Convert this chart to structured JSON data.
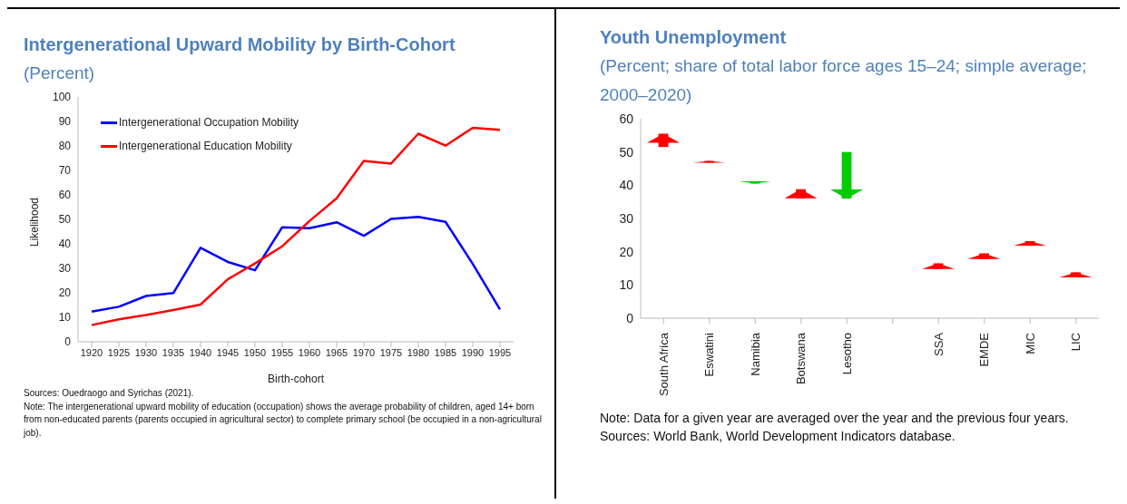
{
  "chart_data": [
    {
      "type": "line",
      "title": "Intergenerational Upward Mobility by Birth-Cohort",
      "subtitle": "(Percent)",
      "xlabel": "Birth-cohort",
      "ylabel": "Likelihood",
      "x": [
        1920,
        1925,
        1930,
        1935,
        1940,
        1945,
        1950,
        1955,
        1960,
        1965,
        1970,
        1975,
        1980,
        1985,
        1990,
        1995
      ],
      "xlim": [
        1917.5,
        1997.5
      ],
      "xticks": [
        1920,
        1925,
        1930,
        1935,
        1940,
        1945,
        1950,
        1955,
        1960,
        1965,
        1970,
        1975,
        1980,
        1985,
        1990,
        1995
      ],
      "ylim": [
        0,
        100
      ],
      "yticks": [
        0,
        10,
        20,
        30,
        40,
        50,
        60,
        70,
        80,
        90,
        100
      ],
      "legend": "top left",
      "series": [
        {
          "name": "Intergenerational Occupation Mobility",
          "color": "#0000ff",
          "values": [
            12.3,
            14.3,
            18.7,
            19.9,
            38.4,
            32.6,
            29.2,
            46.8,
            46.4,
            48.8,
            43.3,
            50.2,
            51,
            49,
            31.8,
            13.2
          ]
        },
        {
          "name": "Intergenerational Education Mobility",
          "color": "#ff0000",
          "values": [
            6.8,
            9.2,
            10.9,
            13,
            15.2,
            25.5,
            32,
            39,
            49.3,
            58.6,
            73.9,
            72.8,
            85,
            80.1,
            87.4,
            86.6
          ]
        }
      ],
      "annotations": [
        "Sources: Ouedraogo and Syrichas (2021).",
        "Note: The intergenerational upward mobility of education (occupation) shows the average probability of children, aged 14+ born from non-educated parents (parents occupied in agricultural sector) to complete primary school (be occupied in a non-agricultural job)."
      ]
    },
    {
      "type": "bar",
      "title": "Youth Unemployment",
      "subtitle": "(Percent; share of total labor force ages 15–24; simple average; 2000–2020)",
      "categories": [
        "South Africa",
        "Eswatini",
        "Namibia",
        "Botswana",
        "Lesotho",
        null,
        "SSA",
        "EMDE",
        "MIC",
        "LIC"
      ],
      "base": [
        51.5,
        46.8,
        41.2,
        36,
        50,
        null,
        14.8,
        17.8,
        21.8,
        12.3
      ],
      "values": [
        4,
        0.5,
        -0.7,
        2.8,
        -14,
        null,
        1.7,
        1.7,
        1.4,
        1.5
      ],
      "colors": [
        "#ff0000",
        "#ff0000",
        "#00cc00",
        "#ff0000",
        "#00cc00",
        null,
        "#ff0000",
        "#ff0000",
        "#ff0000",
        "#ff0000"
      ],
      "ylim": [
        0,
        60
      ],
      "yticks": [
        0,
        10,
        20,
        30,
        40,
        50,
        60
      ],
      "annotations": [
        "Note: Data for a given year are averaged over the year and the previous four years.",
        "Sources: World Bank, World Development Indicators database."
      ]
    }
  ]
}
